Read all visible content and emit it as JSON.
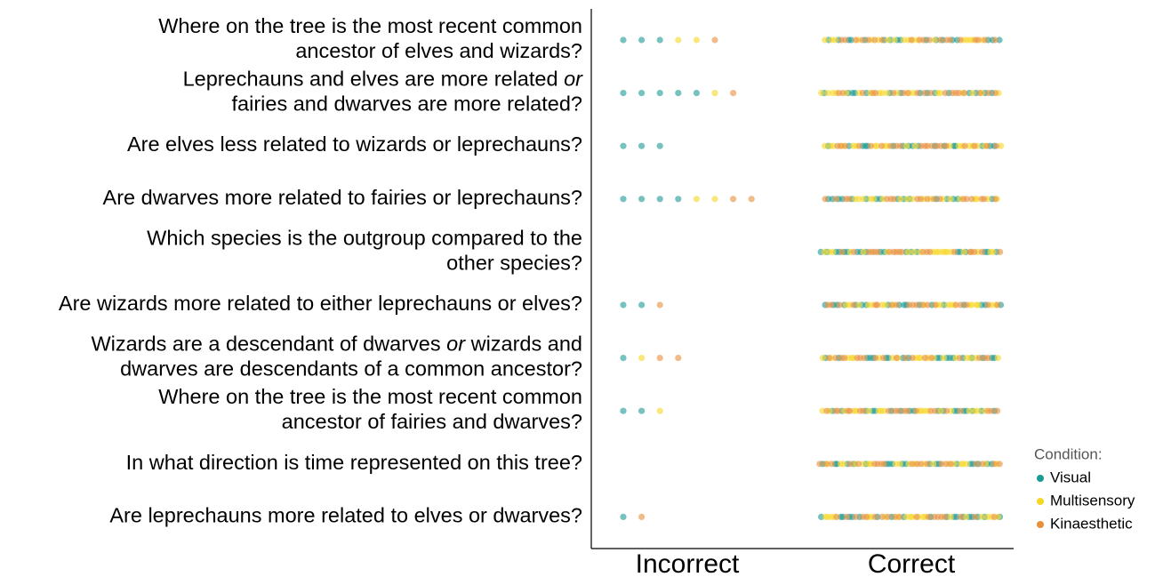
{
  "chart_data": {
    "type": "strip",
    "categories": [
      [
        [
          "Where on the tree is the most recent common"
        ],
        [
          "ancestor of elves and wizards?"
        ]
      ],
      [
        [
          "Leprechauns and elves are more related ",
          {
            "italic": "or"
          }
        ],
        [
          "fairies and dwarves are more related?"
        ]
      ],
      [
        [
          "Are elves less related to wizards or leprechauns?"
        ]
      ],
      [
        [
          "Are dwarves more related to fairies or leprechauns?"
        ]
      ],
      [
        [
          "Which species is the outgroup compared to the"
        ],
        [
          "other species?"
        ]
      ],
      [
        [
          "Are wizards more related to either leprechauns or elves?"
        ]
      ],
      [
        [
          "Wizards are a descendant of dwarves ",
          {
            "italic": "or"
          },
          " wizards and"
        ],
        [
          "dwarves are descendants of a common ancestor?"
        ]
      ],
      [
        [
          "Where on the tree is the most recent common"
        ],
        [
          "ancestor of fairies and dwarves?"
        ]
      ],
      [
        [
          "In what direction is time represented on this tree?"
        ]
      ],
      [
        [
          "Are leprechauns more related to elves or dwarves?"
        ]
      ]
    ],
    "answers": [
      "Incorrect",
      "Correct"
    ],
    "legend_title": "Condition:",
    "series": [
      {
        "name": "Visual",
        "color": "#1a9a93",
        "incorrect": [
          3,
          5,
          3,
          4,
          0,
          2,
          1,
          2,
          0,
          1
        ],
        "correct": [
          17,
          15,
          17,
          16,
          20,
          18,
          19,
          18,
          20,
          19
        ]
      },
      {
        "name": "Multisensory",
        "color": "#f6d725",
        "incorrect": [
          2,
          1,
          0,
          2,
          0,
          0,
          1,
          1,
          0,
          0
        ],
        "correct": [
          18,
          19,
          20,
          18,
          20,
          20,
          19,
          19,
          20,
          20
        ]
      },
      {
        "name": "Kinaesthetic",
        "color": "#e88f3a",
        "incorrect": [
          1,
          1,
          0,
          2,
          0,
          1,
          2,
          0,
          0,
          1
        ],
        "correct": [
          19,
          19,
          20,
          18,
          20,
          19,
          18,
          20,
          20,
          19
        ]
      }
    ]
  }
}
